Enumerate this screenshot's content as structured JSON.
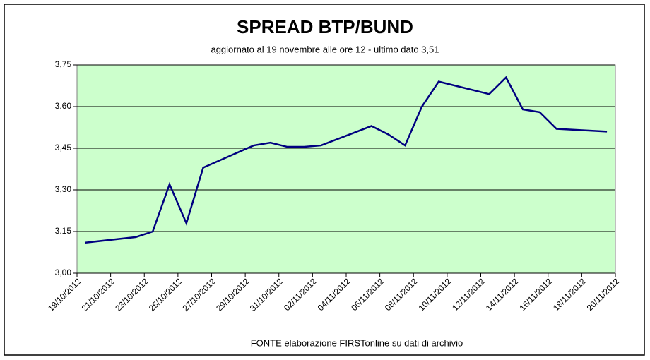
{
  "chart_data": {
    "type": "line",
    "title": "SPREAD  BTP/BUND",
    "subtitle": "aggiornato al 19 novembre alle ore 12 - ultimo dato 3,51",
    "source": "FONTE elaborazione FIRSTonline su dati di archivio",
    "x": [
      "19/10/2012",
      "22/10/2012",
      "23/10/2012",
      "24/10/2012",
      "25/10/2012",
      "26/10/2012",
      "29/10/2012",
      "30/10/2012",
      "31/10/2012",
      "01/11/2012",
      "02/11/2012",
      "05/11/2012",
      "06/11/2012",
      "07/11/2012",
      "08/11/2012",
      "09/11/2012",
      "12/11/2012",
      "13/11/2012",
      "14/11/2012",
      "15/11/2012",
      "16/11/2012",
      "19/11/2012"
    ],
    "series": [
      {
        "name": "Spread",
        "color": "#000080",
        "values": [
          3.11,
          3.13,
          3.15,
          3.32,
          3.18,
          3.38,
          3.46,
          3.47,
          3.455,
          3.455,
          3.46,
          3.53,
          3.5,
          3.46,
          3.6,
          3.69,
          3.645,
          3.705,
          3.59,
          3.58,
          3.52,
          3.51
        ]
      }
    ],
    "xlim": [
      "19/10/2012",
      "20/11/2012"
    ],
    "xticks": [
      "19/10/2012",
      "21/10/2012",
      "23/10/2012",
      "25/10/2012",
      "27/10/2012",
      "29/10/2012",
      "31/10/2012",
      "02/11/2012",
      "04/11/2012",
      "06/11/2012",
      "08/11/2012",
      "10/11/2012",
      "12/11/2012",
      "14/11/2012",
      "16/11/2012",
      "18/11/2012",
      "20/11/2012"
    ],
    "ylim": [
      3.0,
      3.75
    ],
    "yticks": [
      {
        "value": 3.0,
        "label": "3,00"
      },
      {
        "value": 3.15,
        "label": "3.15"
      },
      {
        "value": 3.3,
        "label": "3,30"
      },
      {
        "value": 3.45,
        "label": "3,45"
      },
      {
        "value": 3.6,
        "label": "3.60"
      },
      {
        "value": 3.75,
        "label": "3,75"
      }
    ],
    "grid": true,
    "plot_color": "#ccffcc"
  }
}
